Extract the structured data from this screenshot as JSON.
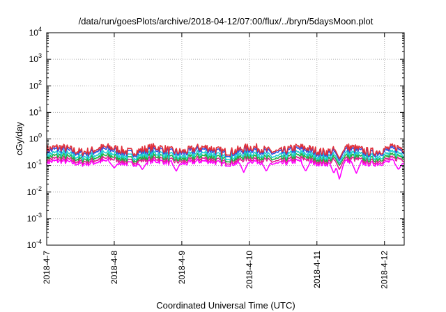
{
  "chart_data": {
    "type": "line",
    "title": "/data/run/goesPlots/archive/2018-04-12/07:00/flux/../bryn/5daysMoon.plot",
    "xlabel": "Coordinated Universal Time (UTC)",
    "ylabel": "cGy/day",
    "yscale": "log",
    "ylim": [
      0.0001,
      10000
    ],
    "y_ticks": [
      {
        "base": "10",
        "exp": "-4",
        "value": 0.0001
      },
      {
        "base": "10",
        "exp": "-3",
        "value": 0.001
      },
      {
        "base": "10",
        "exp": "-2",
        "value": 0.01
      },
      {
        "base": "10",
        "exp": "-1",
        "value": 0.1
      },
      {
        "base": "10",
        "exp": "0",
        "value": 1
      },
      {
        "base": "10",
        "exp": "1",
        "value": 10
      },
      {
        "base": "10",
        "exp": "2",
        "value": 100
      },
      {
        "base": "10",
        "exp": "3",
        "value": 1000
      },
      {
        "base": "10",
        "exp": "4",
        "value": 10000
      }
    ],
    "x_range": [
      "2018-04-07T00:00",
      "2018-04-12T07:00"
    ],
    "x_ticks": [
      "2018-4-7",
      "2018-4-8",
      "2018-4-9",
      "2018-4-10",
      "2018-4-11",
      "2018-4-12"
    ],
    "grid": true,
    "series": [
      {
        "color": "#e0303a",
        "level": 0.4,
        "spikes": [
          {
            "x": "2018-04-11T08:00",
            "value": 0.18
          }
        ]
      },
      {
        "color": "#3050e0",
        "level": 0.34,
        "spikes": [
          {
            "x": "2018-04-11T08:00",
            "value": 0.15
          }
        ]
      },
      {
        "color": "#20d0d0",
        "level": 0.25,
        "spikes": [
          {
            "x": "2018-04-11T08:00",
            "value": 0.12
          }
        ]
      },
      {
        "color": "#20b040",
        "level": 0.2,
        "spikes": [
          {
            "x": "2018-04-11T08:00",
            "value": 0.1
          }
        ]
      },
      {
        "color": "#e02090",
        "level": 0.16,
        "spikes": [
          {
            "x": "2018-04-11T08:00",
            "value": 0.07
          }
        ]
      },
      {
        "color": "#ff00ff",
        "level": 0.13,
        "spikes": [
          {
            "x": "2018-04-08T00:00",
            "value": 0.08
          },
          {
            "x": "2018-04-08T10:00",
            "value": 0.07
          },
          {
            "x": "2018-04-08T22:00",
            "value": 0.06
          },
          {
            "x": "2018-04-09T22:00",
            "value": 0.055
          },
          {
            "x": "2018-04-10T06:00",
            "value": 0.06
          },
          {
            "x": "2018-04-10T20:00",
            "value": 0.06
          },
          {
            "x": "2018-04-11T06:00",
            "value": 0.05
          },
          {
            "x": "2018-04-11T08:00",
            "value": 0.03
          },
          {
            "x": "2018-04-11T14:00",
            "value": 0.05
          },
          {
            "x": "2018-04-12T05:00",
            "value": 0.07
          }
        ]
      }
    ]
  }
}
